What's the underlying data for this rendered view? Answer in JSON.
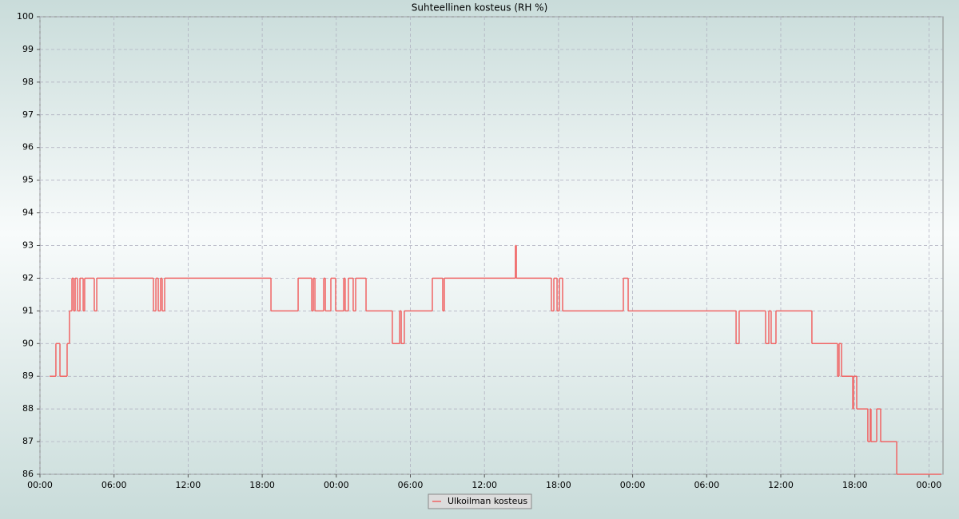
{
  "chart_data": {
    "type": "step",
    "title": "Suhteellinen kosteus (RH %)",
    "x": [
      0.78,
      1.29,
      1.62,
      2.2,
      2.39,
      2.59,
      2.72,
      2.85,
      3.04,
      3.24,
      3.5,
      3.62,
      4.4,
      4.6,
      9.19,
      9.39,
      9.58,
      9.77,
      9.9,
      10.1,
      18.71,
      20.91,
      22.01,
      22.14,
      22.27,
      22.98,
      23.11,
      23.56,
      23.95,
      24.6,
      24.72,
      24.98,
      25.37,
      25.57,
      26.41,
      28.54,
      29.13,
      29.26,
      29.51,
      31.78,
      32.62,
      32.75,
      38.51,
      38.58,
      41.42,
      41.62,
      41.88,
      42.07,
      42.33,
      46.47,
      47.25,
      47.64,
      56.38,
      56.63,
      58.77,
      59.03,
      59.22,
      59.61,
      62.52,
      64.6,
      64.72,
      64.92,
      65.83,
      65.89,
      66.15,
      67.05,
      67.25,
      67.31,
      67.77,
      68.09,
      69.39,
      73.01
    ],
    "series": [
      {
        "name": "Ulkoilman kosteus",
        "color": "#f06464",
        "values": [
          89,
          90,
          89,
          90,
          91,
          92,
          91,
          92,
          91,
          92,
          91,
          92,
          91,
          92,
          91,
          92,
          91,
          92,
          91,
          92,
          91,
          92,
          91,
          92,
          91,
          92,
          91,
          92,
          91,
          92,
          91,
          92,
          91,
          92,
          91,
          90,
          91,
          90,
          91,
          92,
          91,
          92,
          93,
          92,
          91,
          92,
          91,
          92,
          91,
          91,
          92,
          91,
          90,
          91,
          90,
          91,
          90,
          91,
          90,
          89,
          90,
          89,
          88,
          89,
          88,
          87,
          88,
          87,
          88,
          87,
          86,
          86
        ]
      }
    ],
    "xlim": [
      0,
      73.14
    ],
    "xticks": [
      {
        "value": 0,
        "label": "00:00"
      },
      {
        "value": 6,
        "label": "06:00"
      },
      {
        "value": 12,
        "label": "12:00"
      },
      {
        "value": 18,
        "label": "18:00"
      },
      {
        "value": 24,
        "label": "00:00"
      },
      {
        "value": 30,
        "label": "06:00"
      },
      {
        "value": 36,
        "label": "12:00"
      },
      {
        "value": 42,
        "label": "18:00"
      },
      {
        "value": 48,
        "label": "00:00"
      },
      {
        "value": 54,
        "label": "06:00"
      },
      {
        "value": 60,
        "label": "12:00"
      },
      {
        "value": 66,
        "label": "18:00"
      },
      {
        "value": 72,
        "label": "00:00"
      }
    ],
    "ylim": [
      86,
      100
    ],
    "yticks": [
      86,
      87,
      88,
      89,
      90,
      91,
      92,
      93,
      94,
      95,
      96,
      97,
      98,
      99,
      100
    ],
    "grid": true,
    "legend": "bottom"
  }
}
